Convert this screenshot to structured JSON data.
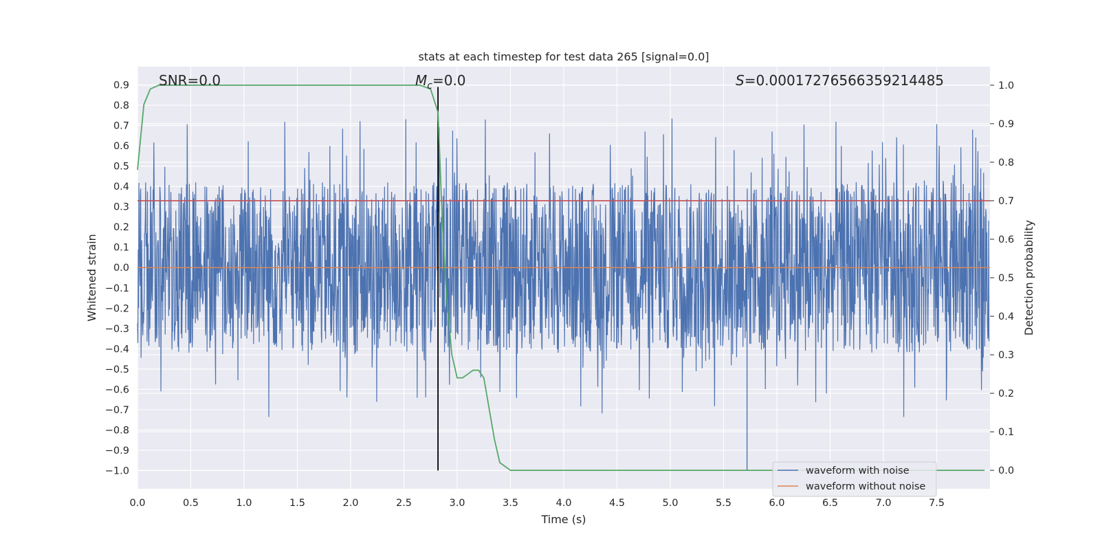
{
  "chart_data": {
    "type": "line",
    "title": "stats at each timestep for test data 265 [signal=0.0]",
    "xlabel": "Time (s)",
    "ylabel_left": "Whitened strain",
    "ylabel_right": "Detection probability",
    "xlim": [
      0.0,
      8.0
    ],
    "ylim_left": [
      -1.09,
      0.99
    ],
    "ylim_right": [
      -0.048,
      1.048
    ],
    "x_ticks": [
      "0.0",
      "0.5",
      "1.0",
      "1.5",
      "2.0",
      "2.5",
      "3.0",
      "3.5",
      "4.0",
      "4.5",
      "5.0",
      "5.5",
      "6.0",
      "6.5",
      "7.0",
      "7.5"
    ],
    "y_left_ticks": [
      "0.9",
      "0.8",
      "0.7",
      "0.6",
      "0.5",
      "0.4",
      "0.3",
      "0.2",
      "0.1",
      "0.0",
      "−0.1",
      "−0.2",
      "−0.3",
      "−0.4",
      "−0.5",
      "−0.6",
      "−0.7",
      "−0.8",
      "−0.9",
      "−1.0"
    ],
    "y_right_ticks": [
      "1.0",
      "0.9",
      "0.8",
      "0.7",
      "0.6",
      "0.5",
      "0.4",
      "0.3",
      "0.2",
      "0.1",
      "0.0"
    ],
    "annotations": {
      "snr": "SNR=0.0",
      "mc_symbol": "M",
      "mc_sub": "c",
      "mc_value": "=0.0",
      "s_symbol": "S",
      "s_value": "=0.00017276566359214485"
    },
    "threshold": 0.7,
    "merger_time": 2.82,
    "series": [
      {
        "name": "waveform with noise",
        "color": "#4c72b0",
        "noise_band": [
          -0.42,
          0.42
        ],
        "peak_range": [
          -1.0,
          0.89
        ]
      },
      {
        "name": "waveform without noise",
        "color": "#dd8452",
        "value": 0.0
      },
      {
        "name": "Detection probability",
        "color": "#55a868",
        "axis": "right",
        "x": [
          0.0,
          0.06,
          0.12,
          0.2,
          0.4,
          0.8,
          1.2,
          1.6,
          2.0,
          2.4,
          2.65,
          2.75,
          2.82,
          2.86,
          2.9,
          2.95,
          3.0,
          3.05,
          3.1,
          3.15,
          3.2,
          3.25,
          3.3,
          3.35,
          3.4,
          3.45,
          3.5,
          3.6,
          4.0,
          5.0,
          6.0,
          7.0,
          7.95
        ],
        "values": [
          0.78,
          0.95,
          0.99,
          1.0,
          1.0,
          1.0,
          1.0,
          1.0,
          1.0,
          1.0,
          1.0,
          0.99,
          0.93,
          0.65,
          0.45,
          0.3,
          0.24,
          0.24,
          0.25,
          0.26,
          0.26,
          0.24,
          0.16,
          0.08,
          0.02,
          0.01,
          0.0,
          0.0,
          0.0,
          0.0,
          0.0,
          0.0,
          0.0
        ]
      }
    ],
    "legend": {
      "placement": "lower-right",
      "entries": [
        "waveform with noise",
        "waveform without noise"
      ]
    },
    "colors": {
      "background": "#eaeaf2",
      "grid": "#ffffff",
      "threshold": "#c44e52",
      "merger_line": "#000000"
    }
  }
}
